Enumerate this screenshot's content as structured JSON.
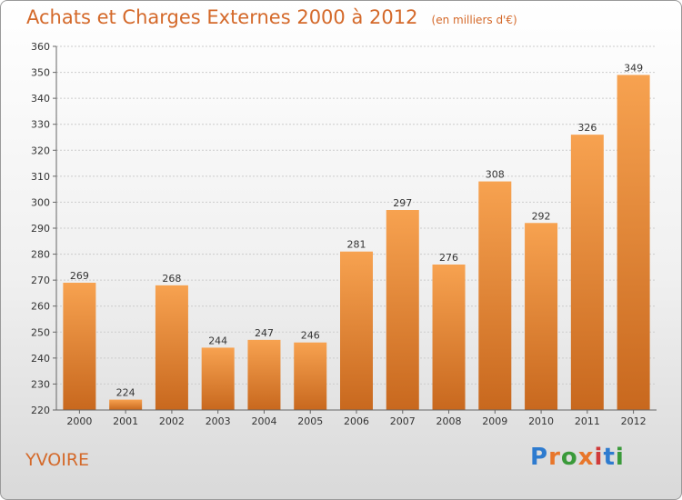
{
  "title": "Achats et Charges Externes 2000 à 2012",
  "subtitle": "(en milliers d'€)",
  "place": "YVOIRE",
  "logo": "Proxiti",
  "colors": {
    "accent": "#d4692a",
    "bar_light": "#f7a250",
    "bar_dark": "#c8681e",
    "logo": [
      "#2e7bcf",
      "#e8762a",
      "#3a9a3a",
      "#e8762a",
      "#d03a3a",
      "#2e7bcf",
      "#3a9a3a"
    ]
  },
  "chart_data": {
    "type": "bar",
    "categories": [
      "2000",
      "2001",
      "2002",
      "2003",
      "2004",
      "2005",
      "2006",
      "2007",
      "2008",
      "2009",
      "2010",
      "2011",
      "2012"
    ],
    "values": [
      269,
      224,
      268,
      244,
      247,
      246,
      281,
      297,
      276,
      308,
      292,
      326,
      349
    ],
    "ylim": [
      220,
      360
    ],
    "yticks": [
      220,
      230,
      240,
      250,
      260,
      270,
      280,
      290,
      300,
      310,
      320,
      330,
      340,
      350,
      360
    ],
    "grid": true,
    "xlabel": "",
    "ylabel": ""
  }
}
